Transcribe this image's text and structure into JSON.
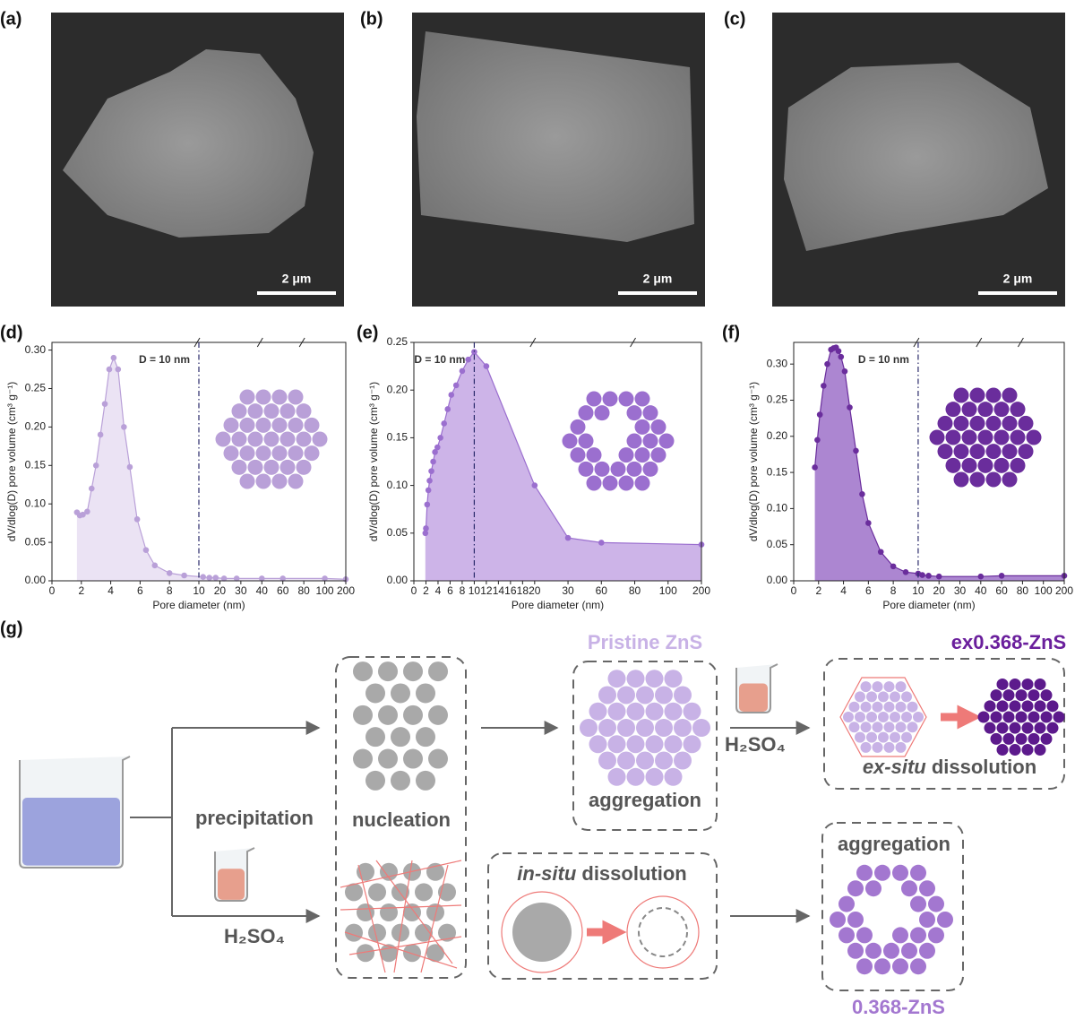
{
  "panel_labels": [
    "(a)",
    "(b)",
    "(c)",
    "(d)",
    "(e)",
    "(f)",
    "(g)"
  ],
  "sem_images": [
    {
      "scale_bar": "2 μm"
    },
    {
      "scale_bar": "2 μm"
    },
    {
      "scale_bar": "2 μm"
    }
  ],
  "chart_data": [
    {
      "type": "area",
      "color": "#b9a0d8",
      "fill_color": "#ebe3f4",
      "x": [
        1.7,
        1.9,
        2.1,
        2.4,
        2.7,
        3.0,
        3.3,
        3.6,
        3.9,
        4.2,
        4.5,
        4.9,
        5.3,
        5.8,
        6.4,
        7.0,
        8,
        9,
        12,
        15,
        18,
        22,
        28,
        40,
        60,
        100,
        200
      ],
      "values": [
        0.089,
        0.085,
        0.086,
        0.09,
        0.12,
        0.15,
        0.19,
        0.23,
        0.275,
        0.29,
        0.275,
        0.2,
        0.148,
        0.08,
        0.04,
        0.02,
        0.01,
        0.007,
        0.005,
        0.004,
        0.004,
        0.003,
        0.003,
        0.003,
        0.003,
        0.003,
        0.002
      ],
      "xlabel": "Pore diameter (nm)",
      "ylabel": "dV/dlog(D) pore volume (cm³ g⁻¹)",
      "xlim": [
        0,
        200
      ],
      "ylim": [
        0,
        0.31
      ],
      "xticks": [
        0,
        2,
        4,
        6,
        8,
        10,
        20,
        30,
        40,
        60,
        80,
        100,
        200
      ],
      "yticks": [
        {
          "value": 0,
          "label": "0.00"
        },
        0.05,
        {
          "value": 0.1,
          "label": "0.10"
        },
        0.15,
        {
          "value": 0.2,
          "label": "0.20"
        },
        0.25,
        {
          "value": 0.3,
          "label": "0.30"
        }
      ],
      "xbreak": 10,
      "vline": 10,
      "annotation": "D = 10 nm"
    },
    {
      "type": "area",
      "color": "#9b6fcf",
      "fill_color": "#cdb4e8",
      "x": [
        1.9,
        2.0,
        2.2,
        2.4,
        2.6,
        2.9,
        3.2,
        3.5,
        3.9,
        4.4,
        5,
        5.6,
        6.2,
        7,
        8,
        9,
        10,
        12,
        20,
        30,
        60,
        200
      ],
      "values": [
        0.05,
        0.055,
        0.08,
        0.095,
        0.105,
        0.115,
        0.125,
        0.135,
        0.14,
        0.15,
        0.165,
        0.18,
        0.195,
        0.205,
        0.22,
        0.232,
        0.24,
        0.225,
        0.1,
        0.045,
        0.04,
        0.038
      ],
      "xlabel": "Pore diameter (nm)",
      "ylabel": "dV/dlog(D) pore volume (cm³ g⁻¹)",
      "xlim": [
        0,
        200
      ],
      "ylim": [
        0,
        0.25
      ],
      "xticks": [
        0,
        2,
        4,
        6,
        8,
        10,
        12,
        14,
        16,
        18,
        20,
        30,
        60,
        80,
        100,
        200
      ],
      "yticks": [
        {
          "value": 0,
          "label": "0.00"
        },
        0.05,
        {
          "value": 0.1,
          "label": "0.10"
        },
        0.15,
        {
          "value": 0.2,
          "label": "0.20"
        },
        0.25
      ],
      "xbreak": 20,
      "vline": 10,
      "annotation": "D = 10 nm"
    },
    {
      "type": "area",
      "color": "#6a2d9c",
      "fill_color": "#ac86d1",
      "x": [
        1.7,
        1.9,
        2.1,
        2.4,
        2.7,
        3.0,
        3.2,
        3.4,
        3.6,
        3.8,
        4.1,
        4.5,
        5,
        5.5,
        6,
        7,
        8,
        9,
        10,
        12,
        15,
        20,
        40,
        60,
        200
      ],
      "values": [
        0.157,
        0.195,
        0.23,
        0.27,
        0.3,
        0.32,
        0.322,
        0.323,
        0.318,
        0.31,
        0.29,
        0.24,
        0.18,
        0.12,
        0.08,
        0.04,
        0.02,
        0.012,
        0.01,
        0.008,
        0.007,
        0.006,
        0.006,
        0.007,
        0.007
      ],
      "xlabel": "Pore diameter (nm)",
      "ylabel": "dV/dlog(D) pore volume (cm³ g⁻¹)",
      "xlim": [
        0,
        200
      ],
      "ylim": [
        0,
        0.33
      ],
      "xticks": [
        0,
        2,
        4,
        6,
        8,
        10,
        20,
        30,
        40,
        60,
        80,
        100,
        200
      ],
      "yticks": [
        {
          "value": 0,
          "label": "0.00"
        },
        0.05,
        {
          "value": 0.1,
          "label": "0.10"
        },
        0.15,
        {
          "value": 0.2,
          "label": "0.20"
        },
        0.25,
        {
          "value": 0.3,
          "label": "0.30"
        }
      ],
      "xbreak": 10,
      "vline": 10,
      "annotation": "D = 10 nm"
    }
  ],
  "diagram": {
    "precipitation": "precipitation",
    "acid_1": "H₂SO₄",
    "acid_2": "H₂SO₄",
    "nucleation": "nucleation",
    "aggregation_1": "aggregation",
    "pristine": "Pristine ZnS",
    "ex_product": "ex0.368-ZnS",
    "ex_situ_prefix": "ex-situ",
    "ex_situ_suffix": " dissolution",
    "in_situ_prefix": "in-situ",
    "in_situ_suffix": " dissolution",
    "aggregation_2": "aggregation",
    "in_product": "0.368-ZnS"
  }
}
